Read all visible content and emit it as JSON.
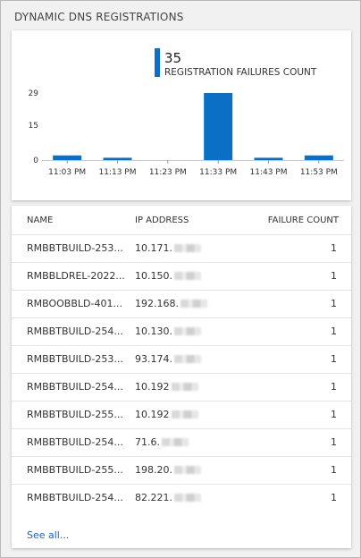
{
  "tile": {
    "title": "DYNAMIC DNS REGISTRATIONS"
  },
  "chart_data": {
    "type": "bar",
    "title": "",
    "summary_value": "35",
    "legend_label": "REGISTRATION FAILURES COUNT",
    "categories": [
      "11:03 PM",
      "11:13 PM",
      "11:23 PM",
      "11:33 PM",
      "11:43 PM",
      "11:53 PM"
    ],
    "y_ticks": [
      "0",
      "15",
      "29"
    ],
    "ylim": [
      0,
      29
    ],
    "grid": false,
    "bar_color": "#0b6fc6",
    "bars": [
      {
        "x": "11:03 PM",
        "value": 2
      },
      {
        "x": "11:13 PM",
        "value": 1
      },
      {
        "x": "11:33 PM",
        "value": 29
      },
      {
        "x": "11:43 PM",
        "value": 1
      },
      {
        "x": "11:53 PM",
        "value": 2
      }
    ]
  },
  "table": {
    "headers": {
      "name": "NAME",
      "ip": "IP ADDRESS",
      "count": "FAILURE COUNT"
    },
    "rows": [
      {
        "name": "RMBBTBUILD-253...",
        "ip": "10.171.",
        "count": "1"
      },
      {
        "name": "RMBBLDREL-2022...",
        "ip": "10.150.",
        "count": "1"
      },
      {
        "name": "RMBOOBBLD-401...",
        "ip": "192.168.",
        "count": "1"
      },
      {
        "name": "RMBBTBUILD-254...",
        "ip": "10.130.",
        "count": "1"
      },
      {
        "name": "RMBBTBUILD-253...",
        "ip": "93.174.",
        "count": "1"
      },
      {
        "name": "RMBBTBUILD-254...",
        "ip": "10.192",
        "count": "1"
      },
      {
        "name": "RMBBTBUILD-255...",
        "ip": "10.192",
        "count": "1"
      },
      {
        "name": "RMBBTBUILD-254...",
        "ip": "71.6.",
        "count": "1"
      },
      {
        "name": "RMBBTBUILD-255...",
        "ip": "198.20.",
        "count": "1"
      },
      {
        "name": "RMBBTBUILD-254...",
        "ip": "82.221.",
        "count": "1"
      }
    ],
    "see_all": "See all..."
  }
}
